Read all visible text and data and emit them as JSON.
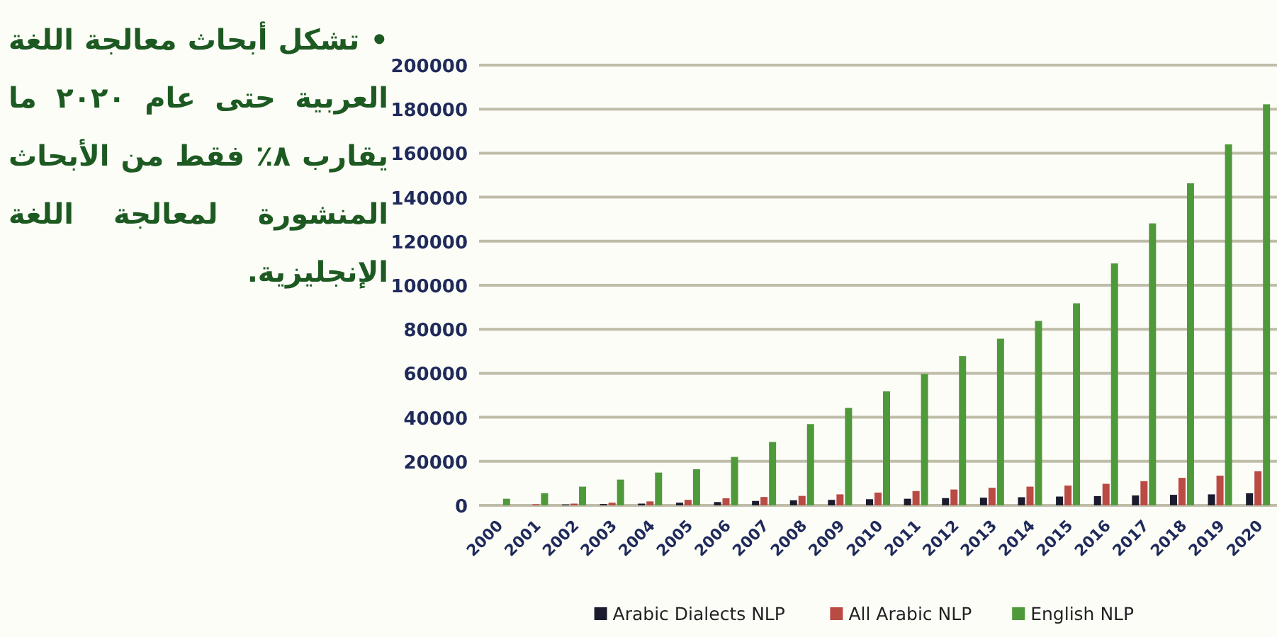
{
  "chart_data": {
    "type": "bar",
    "annotations": [
      "• تشكل أبحاث معالجة اللغة العربية حتى عام ٢٠٢٠ ما يقارب ٨٪ فقط من الأبحاث المنشورة لمعالجة اللغة الإنجليزية."
    ],
    "categories": [
      "2000",
      "2001",
      "2002",
      "2003",
      "2004",
      "2005",
      "2006",
      "2007",
      "2008",
      "2009",
      "2010",
      "2011",
      "2012",
      "2013",
      "2014",
      "2015",
      "2016",
      "2017",
      "2018",
      "2019",
      "2020"
    ],
    "series": [
      {
        "name": "Arabic Dialects NLP",
        "color": "#1b1b2e",
        "values": [
          null,
          null,
          400,
          600,
          800,
          1200,
          1500,
          2000,
          2300,
          2500,
          2800,
          3000,
          3300,
          3500,
          3700,
          4000,
          4200,
          4500,
          4800,
          5000,
          5500
        ]
      },
      {
        "name": "All Arabic NLP",
        "color": "#b94a44",
        "values": [
          null,
          500,
          800,
          1200,
          1800,
          2500,
          3200,
          3800,
          4300,
          5000,
          5800,
          6500,
          7200,
          8000,
          8500,
          9000,
          9800,
          11000,
          12500,
          13500,
          15500
        ]
      },
      {
        "name": "English NLP",
        "color": "#4e9a3a",
        "values": [
          3000,
          5500,
          8500,
          11700,
          14900,
          16400,
          22000,
          28800,
          36900,
          44300,
          51800,
          59700,
          67800,
          75700,
          83800,
          91800,
          109900,
          128100,
          146300,
          164000,
          182200
        ]
      }
    ],
    "ylim": [
      0,
      200000
    ],
    "yticks": [
      0,
      20000,
      40000,
      60000,
      80000,
      100000,
      120000,
      140000,
      160000,
      180000,
      200000
    ],
    "grid": "y",
    "legend": "bottom"
  }
}
